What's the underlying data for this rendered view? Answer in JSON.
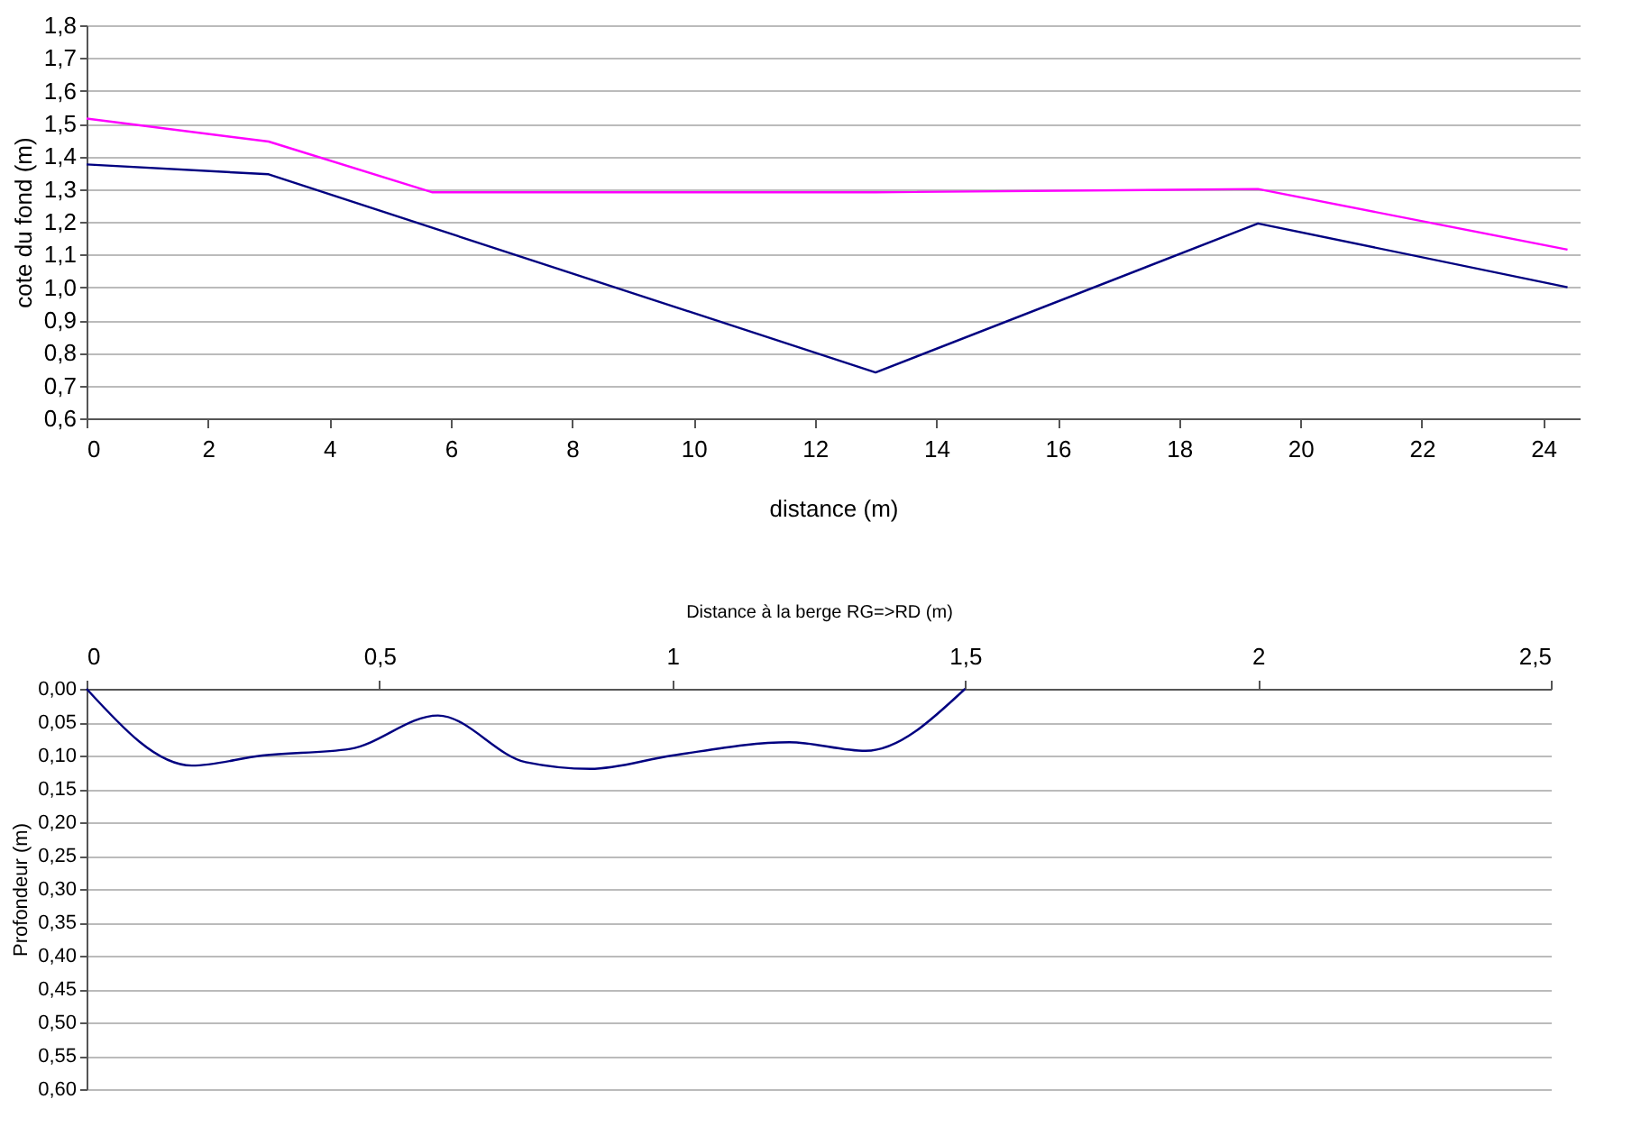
{
  "chart_data": [
    {
      "type": "line",
      "xlabel": "distance (m)",
      "ylabel": "cote du fond (m)",
      "xlim": [
        0,
        24.6
      ],
      "xticks": [
        0,
        2,
        4,
        6,
        8,
        10,
        12,
        14,
        16,
        18,
        20,
        22,
        24
      ],
      "ylim": [
        0.6,
        1.8
      ],
      "yticks": [
        {
          "value": 0.6,
          "label": "0,6"
        },
        {
          "value": 0.7,
          "label": "0,7"
        },
        {
          "value": 0.8,
          "label": "0,8"
        },
        {
          "value": 0.9,
          "label": "0,9"
        },
        {
          "value": 1.0,
          "label": "1,0"
        },
        {
          "value": 1.1,
          "label": "1,1"
        },
        {
          "value": 1.2,
          "label": "1,2"
        },
        {
          "value": 1.3,
          "label": "1,3"
        },
        {
          "value": 1.4,
          "label": "1,4"
        },
        {
          "value": 1.5,
          "label": "1,5"
        },
        {
          "value": 1.6,
          "label": "1,6"
        },
        {
          "value": 1.7,
          "label": "1,7"
        },
        {
          "value": 1.8,
          "label": "1,8"
        }
      ],
      "grid": "y",
      "series": [
        {
          "color": "#ff00ff",
          "x": [
            0,
            3,
            5.7,
            13,
            19.3,
            24.4
          ],
          "values": [
            1.515,
            1.445,
            1.29,
            1.29,
            1.3,
            1.115
          ]
        },
        {
          "color": "#000080",
          "x": [
            0,
            3,
            13,
            19.3,
            24.4
          ],
          "values": [
            1.375,
            1.345,
            0.74,
            1.195,
            1.0
          ]
        }
      ]
    },
    {
      "type": "line",
      "xlabel": "Distance à la berge RG=>RD (m)",
      "ylabel": "Profondeur (m)",
      "xlim": [
        0,
        2.5
      ],
      "xticks": [
        0,
        {
          "value": 0.5,
          "label": "0,5"
        },
        1,
        {
          "value": 1.5,
          "label": "1,5"
        },
        2,
        {
          "value": 2.5,
          "label": "2,5"
        }
      ],
      "ylim": [
        0.6,
        0
      ],
      "yticks": [
        {
          "value": 0,
          "label": "0,00"
        },
        {
          "value": 0.05,
          "label": "0,05"
        },
        {
          "value": 0.1,
          "label": "0,10"
        },
        {
          "value": 0.15,
          "label": "0,15"
        },
        {
          "value": 0.2,
          "label": "0,20"
        },
        {
          "value": 0.25,
          "label": "0,25"
        },
        {
          "value": 0.3,
          "label": "0,30"
        },
        {
          "value": 0.35,
          "label": "0,35"
        },
        {
          "value": 0.4,
          "label": "0,40"
        },
        {
          "value": 0.45,
          "label": "0,45"
        },
        {
          "value": 0.5,
          "label": "0,50"
        },
        {
          "value": 0.55,
          "label": "0,55"
        },
        {
          "value": 0.6,
          "label": "0,60"
        }
      ],
      "grid": "y",
      "series": [
        {
          "color": "#000080",
          "x": [
            0,
            0.18,
            0.3,
            0.45,
            0.6,
            0.75,
            0.86,
            1.0,
            1.2,
            1.33,
            1.5
          ],
          "values": [
            0,
            0.115,
            0.1,
            0.09,
            0.04,
            0.11,
            0.12,
            0.1,
            0.08,
            0.093,
            0
          ]
        }
      ]
    }
  ]
}
